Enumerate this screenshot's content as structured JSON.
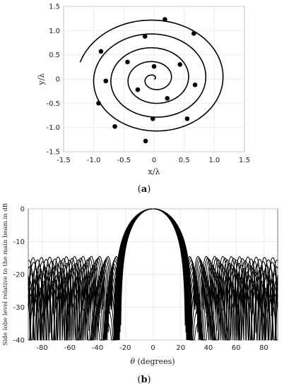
{
  "chart_data": [
    {
      "type": "scatter",
      "panel_label": "a",
      "title": "",
      "xlabel": "x/λ",
      "ylabel": "y/λ",
      "xlim": [
        -1.5,
        1.5
      ],
      "ylim": [
        -1.5,
        1.5
      ],
      "xticks": [
        "-1.5",
        "-1.0",
        "-0.5",
        "0",
        "0.5",
        "1.0",
        "1.5"
      ],
      "yticks": [
        "-1.5",
        "-1.0",
        "-0.5",
        "0",
        "0.5",
        "1.0",
        "1.5"
      ],
      "grid": true,
      "spiral": {
        "b": 0.0455,
        "theta_max": 28.0,
        "start_angle": 0.0
      },
      "elements": [
        {
          "x": 0.0,
          "y": 0.26
        },
        {
          "x": 0.43,
          "y": 0.3
        },
        {
          "x": 0.68,
          "y": -0.12
        },
        {
          "x": 0.55,
          "y": -0.82
        },
        {
          "x": -0.14,
          "y": -1.28
        },
        {
          "x": -0.65,
          "y": -0.98
        },
        {
          "x": -0.92,
          "y": -0.5
        },
        {
          "x": -0.88,
          "y": 0.57
        },
        {
          "x": -0.15,
          "y": 0.88
        },
        {
          "x": 0.66,
          "y": 0.94
        },
        {
          "x": 0.18,
          "y": 1.23
        },
        {
          "x": 0.22,
          "y": -0.4
        },
        {
          "x": -0.27,
          "y": -0.22
        },
        {
          "x": -0.8,
          "y": -0.04
        },
        {
          "x": -0.44,
          "y": 0.35
        },
        {
          "x": -0.02,
          "y": -0.82
        }
      ]
    },
    {
      "type": "line",
      "panel_label": "b",
      "title": "",
      "xlabel": "θ (degrees)",
      "ylabel": "Side lobe level relative to the main beam in dB",
      "xlim": [
        -90,
        90
      ],
      "ylim": [
        -40,
        0
      ],
      "xticks": [
        "-80",
        "-60",
        "-40",
        "-20",
        "0",
        "20",
        "40",
        "60",
        "80"
      ],
      "yticks": [
        "0",
        "-10",
        "-20",
        "-30",
        "-40"
      ],
      "grid": true,
      "main_beam": {
        "peak": 0,
        "first_null_deg": 25
      },
      "sidelobe_bands": [
        {
          "start_db": -15.5,
          "peak_db": -14.5,
          "peak_deg": 42,
          "span_deg": 62,
          "floor_db": -22
        },
        {
          "start_db": -16.5,
          "peak_db": -15.0,
          "peak_deg": 45,
          "span_deg": 58,
          "floor_db": -24
        },
        {
          "start_db": -17.5,
          "peak_db": -15.5,
          "peak_deg": 47,
          "span_deg": 54,
          "floor_db": -26
        },
        {
          "start_db": -19.0,
          "peak_db": -16.5,
          "peak_deg": 50,
          "span_deg": 50,
          "floor_db": -28
        },
        {
          "start_db": -20.5,
          "peak_db": -17.0,
          "peak_deg": 52,
          "span_deg": 48,
          "floor_db": -30
        },
        {
          "start_db": -22.0,
          "peak_db": -18.0,
          "peak_deg": 55,
          "span_deg": 44,
          "floor_db": -31
        },
        {
          "start_db": -23.5,
          "peak_db": -19.0,
          "peak_deg": 57,
          "span_deg": 42,
          "floor_db": -33
        },
        {
          "start_db": -25.0,
          "peak_db": -20.0,
          "peak_deg": 60,
          "span_deg": 38,
          "floor_db": -35
        },
        {
          "start_db": -27.0,
          "peak_db": -21.0,
          "peak_deg": 62,
          "span_deg": 36,
          "floor_db": -37
        },
        {
          "start_db": -30.0,
          "peak_db": -22.5,
          "peak_deg": 65,
          "span_deg": 32,
          "floor_db": -39
        },
        {
          "start_db": -33.0,
          "peak_db": -24.0,
          "peak_deg": 68,
          "span_deg": 30,
          "floor_db": -40
        },
        {
          "start_db": -36.0,
          "peak_db": -26.0,
          "peak_deg": 72,
          "span_deg": 28,
          "floor_db": -40
        }
      ]
    }
  ],
  "captions": {
    "a": "(a)",
    "b": "(b)"
  }
}
